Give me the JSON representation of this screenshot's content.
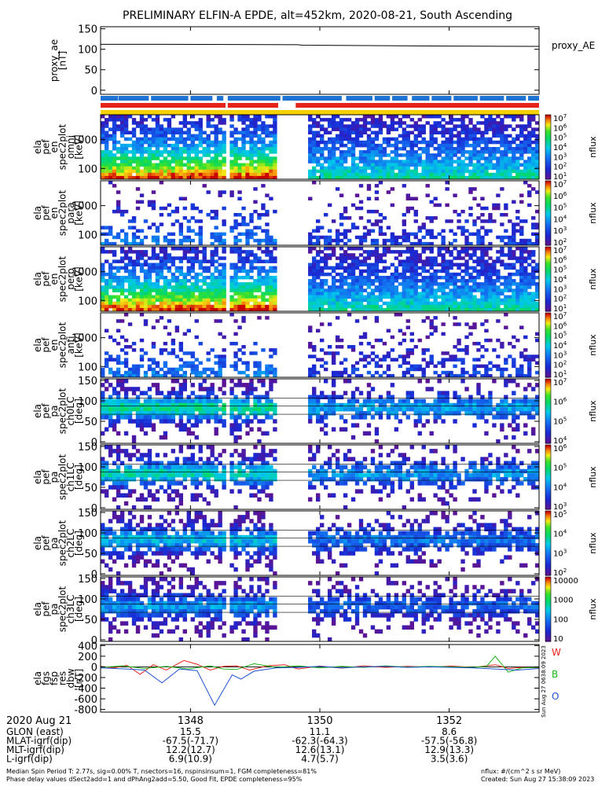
{
  "title": "PRELIMINARY ELFIN-A EPDE, alt=452km, 2020-08-21, South Ascending",
  "chart_data": [
    {
      "type": "line",
      "name": "proxy_ae",
      "ylabel": [
        "proxy_ae",
        "[nT]"
      ],
      "legend": "proxy_AE",
      "ylim": [
        -10,
        155
      ],
      "yticks": [
        "150",
        "100",
        "50",
        "0"
      ],
      "xlim": [
        0,
        1
      ],
      "series": [
        {
          "x": [
            0,
            0.15,
            0.45,
            0.46,
            0.75,
            1.0
          ],
          "y": [
            112,
            112,
            111,
            110,
            108,
            107
          ]
        }
      ]
    },
    {
      "type": "bar",
      "name": "status-bars",
      "rows": [
        {
          "color": "#1e73d2",
          "segments": [
            [
              0.0,
              0.04
            ],
            [
              0.041,
              0.11
            ],
            [
              0.115,
              0.2
            ],
            [
              0.205,
              0.255
            ],
            [
              0.265,
              0.28
            ],
            [
              0.29,
              0.41
            ],
            [
              0.415,
              0.55
            ],
            [
              0.56,
              0.62
            ],
            [
              0.625,
              0.66
            ],
            [
              0.665,
              0.7
            ],
            [
              0.71,
              0.75
            ],
            [
              0.755,
              0.8
            ],
            [
              0.805,
              0.86
            ],
            [
              0.865,
              0.92
            ],
            [
              0.925,
              0.97
            ],
            [
              0.975,
              1.0
            ]
          ]
        },
        {
          "color": "#e6231a",
          "segments": [
            [
              0.0,
              0.285
            ],
            [
              0.29,
              0.405
            ],
            [
              0.445,
              1.0
            ]
          ]
        },
        {
          "color": "#f5d100",
          "segments": [
            [
              0.0,
              1.0
            ]
          ]
        }
      ]
    },
    {
      "type": "heatmap",
      "name": "energy-omni",
      "ylabel": [
        "ela",
        "pef",
        "en",
        "spec2plot",
        "omni",
        "[keV]"
      ],
      "yticks": [
        "1000",
        "100"
      ],
      "ytick_pos": [
        0.38,
        0.85
      ],
      "profile": "energy",
      "intensity": 1.0,
      "cbar": {
        "label": "nflux",
        "ticks": [
          "10^7",
          "10^6",
          "10^5",
          "10^4",
          "10^3",
          "10^2",
          "10^1"
        ]
      }
    },
    {
      "type": "heatmap",
      "name": "energy-para",
      "ylabel": [
        "ela",
        "pef",
        "en",
        "spec2plot",
        "para",
        "[keV]"
      ],
      "yticks": [
        "1000",
        "100"
      ],
      "ytick_pos": [
        0.38,
        0.85
      ],
      "profile": "energy",
      "intensity": 0.35,
      "cbar": {
        "label": "nflux",
        "ticks": [
          "10^7",
          "10^6",
          "10^5",
          "10^4",
          "10^3",
          "10^2"
        ]
      }
    },
    {
      "type": "heatmap",
      "name": "energy-perp",
      "ylabel": [
        "ela",
        "pef",
        "en",
        "spec2plot",
        "perp",
        "[keV]"
      ],
      "yticks": [
        "1000",
        "100"
      ],
      "ytick_pos": [
        0.38,
        0.85
      ],
      "profile": "energy",
      "intensity": 1.0,
      "cbar": {
        "label": "nflux",
        "ticks": [
          "10^7",
          "10^6",
          "10^5",
          "10^4",
          "10^3",
          "10^2",
          "10^1"
        ]
      }
    },
    {
      "type": "heatmap",
      "name": "energy-anti",
      "ylabel": [
        "ela",
        "pef",
        "en",
        "spec2plot",
        "anti",
        "[keV]"
      ],
      "yticks": [
        "1000",
        "100"
      ],
      "ytick_pos": [
        0.38,
        0.85
      ],
      "profile": "energy",
      "intensity": 0.35,
      "cbar": {
        "label": "nflux",
        "ticks": [
          "10^7",
          "10^6",
          "10^5",
          "10^4",
          "10^3",
          "10^2",
          "10^1"
        ]
      }
    },
    {
      "type": "heatmap",
      "name": "pa-ch0",
      "ylabel": [
        "ela",
        "pef",
        "pa",
        "spec2plot",
        "ch0LC",
        "[deg]"
      ],
      "yticks": [
        "150",
        "100",
        "50",
        "0"
      ],
      "profile": "pitch",
      "intensity": 0.9,
      "cbar": {
        "label": "nflux",
        "ticks": [
          "10^7",
          "10^6",
          "10^5",
          "10^4"
        ]
      }
    },
    {
      "type": "heatmap",
      "name": "pa-ch1",
      "ylabel": [
        "ela",
        "pef",
        "pa",
        "spec2plot",
        "ch1LC",
        "[deg]"
      ],
      "yticks": [
        "150",
        "100",
        "50",
        "0"
      ],
      "profile": "pitch",
      "intensity": 0.85,
      "cbar": {
        "label": "nflux",
        "ticks": [
          "10^6",
          "10^5",
          "10^4",
          "10^3"
        ]
      }
    },
    {
      "type": "heatmap",
      "name": "pa-ch2",
      "ylabel": [
        "ela",
        "pef",
        "pa",
        "spec2plot",
        "ch2LC",
        "[deg]"
      ],
      "yticks": [
        "150",
        "100",
        "50",
        "0"
      ],
      "profile": "pitch",
      "intensity": 0.7,
      "cbar": {
        "label": "nflux",
        "ticks": [
          "10^5",
          "10^4",
          "10^3",
          "10^2"
        ]
      }
    },
    {
      "type": "heatmap",
      "name": "pa-ch3",
      "ylabel": [
        "ela",
        "pef",
        "pa",
        "spec2plot",
        "ch3LC",
        "[deg]"
      ],
      "yticks": [
        "150",
        "100",
        "50",
        "0"
      ],
      "profile": "pitch",
      "intensity": 0.6,
      "cbar": {
        "label": "nflux",
        "ticks": [
          "10000",
          "1000",
          "100",
          "10"
        ]
      }
    },
    {
      "type": "line",
      "name": "fgs-res-dbw",
      "ylabel": [
        "ela",
        "fgs",
        "fsp",
        "res",
        "dbw",
        "[nT]"
      ],
      "ylim": [
        -850,
        420
      ],
      "yticks": [
        "400",
        "200",
        "0",
        "-200",
        "-400",
        "-600",
        "-800"
      ],
      "legend_labels": [
        "W",
        "B",
        "O"
      ],
      "series": [
        {
          "name": "W",
          "color": "#e6231a",
          "x": [
            0,
            0.03,
            0.06,
            0.09,
            0.12,
            0.15,
            0.19,
            0.22,
            0.25,
            0.28,
            0.31,
            0.34,
            0.38,
            0.42,
            0.45,
            0.5,
            0.55,
            0.6,
            0.65,
            0.7,
            0.75,
            0.8,
            0.85,
            0.9,
            0.93,
            0.96,
            1.0
          ],
          "y": [
            10,
            -20,
            30,
            -140,
            40,
            -60,
            120,
            50,
            -60,
            10,
            20,
            -60,
            20,
            40,
            -40,
            15,
            -25,
            20,
            -10,
            10,
            -5,
            15,
            -10,
            40,
            -30,
            -10,
            -20
          ]
        },
        {
          "name": "B",
          "color": "#18b418",
          "x": [
            0,
            0.05,
            0.1,
            0.15,
            0.2,
            0.25,
            0.28,
            0.31,
            0.35,
            0.4,
            0.45,
            0.5,
            0.55,
            0.6,
            0.65,
            0.7,
            0.75,
            0.8,
            0.85,
            0.88,
            0.9,
            0.93,
            0.96,
            1.0
          ],
          "y": [
            -10,
            20,
            -30,
            10,
            -40,
            20,
            -40,
            -50,
            60,
            -10,
            20,
            -20,
            10,
            -10,
            20,
            -5,
            10,
            0,
            -10,
            10,
            200,
            -100,
            -20,
            -10
          ]
        },
        {
          "name": "O",
          "color": "#1e50d2",
          "x": [
            0,
            0.06,
            0.1,
            0.14,
            0.18,
            0.22,
            0.26,
            0.3,
            0.32,
            0.35,
            0.4,
            0.45,
            0.5,
            0.55,
            0.6,
            0.65,
            0.7,
            0.75,
            0.8,
            0.85,
            0.9,
            0.95,
            1.0
          ],
          "y": [
            -20,
            -40,
            -60,
            -300,
            -40,
            -70,
            -720,
            -150,
            -230,
            -80,
            -20,
            -10,
            10,
            -20,
            0,
            10,
            -10,
            0,
            -10,
            -20,
            -40,
            -60,
            -30
          ]
        }
      ],
      "side_stamp": "Sun Aug 27 0638:09 2023"
    }
  ],
  "xaxis": {
    "date_label": "2020 Aug 21",
    "ticks": [
      {
        "label": "1348",
        "frac": 0.205
      },
      {
        "label": "1350",
        "frac": 0.5
      },
      {
        "label": "1352",
        "frac": 0.795
      }
    ],
    "rows": [
      {
        "name": "GLON (east)",
        "values": [
          "15.5",
          "11.1",
          "8.6"
        ]
      },
      {
        "name": "MLAT-igrf(dip)",
        "values": [
          "-67.5(-71.7)",
          "-62.3(-64.3)",
          "-57.5(-56.8)"
        ]
      },
      {
        "name": "MLT-igrf(dip)",
        "values": [
          "12.2(12.7)",
          "12.6(13.1)",
          "12.9(13.3)"
        ]
      },
      {
        "name": "L-igrf(dip)",
        "values": [
          "6.9(10.9)",
          "4.7(5.7)",
          "3.5(3.6)"
        ]
      }
    ]
  },
  "footer": {
    "line1": "Median Spin Period T: 2.77s, sig=0.00% T, nsectors=16, nspinsinsum=1, FGM completeness=81%",
    "line2": "Phase delay values dSect2add=1 and dPhAng2add=5.50, Good Fit, EPDE completeness=95%",
    "units": "nflux: #/(cm^2 s sr MeV)",
    "created": "Created: Sun Aug 27 15:38:09 2023"
  }
}
